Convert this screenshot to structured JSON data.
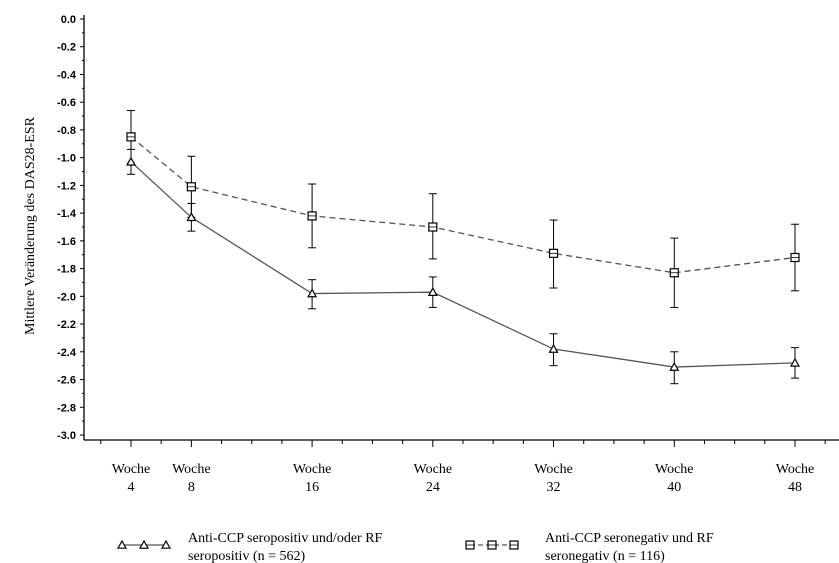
{
  "chart_data": {
    "type": "line",
    "title": "",
    "ylabel": "Mittlere Veränderung des DAS28-ESR",
    "xlabel": "",
    "ylim": [
      -3.0,
      0.0
    ],
    "y_ticks": [
      "0.0",
      "-0.2",
      "-0.4",
      "-0.6",
      "-0.8",
      "-1.0",
      "-1.2",
      "-1.4",
      "-1.6",
      "-1.8",
      "-2.0",
      "-2.2",
      "-2.4",
      "-2.6",
      "-2.8",
      "-3.0"
    ],
    "x": [
      4,
      8,
      16,
      24,
      32,
      40,
      48
    ],
    "x_tick_labels": [
      {
        "line1": "Woche",
        "line2": "4"
      },
      {
        "line1": "Woche",
        "line2": "8"
      },
      {
        "line1": "Woche",
        "line2": "16"
      },
      {
        "line1": "Woche",
        "line2": "24"
      },
      {
        "line1": "Woche",
        "line2": "32"
      },
      {
        "line1": "Woche",
        "line2": "40"
      },
      {
        "line1": "Woche",
        "line2": "48"
      }
    ],
    "grid": false,
    "legend_position": "bottom",
    "series": [
      {
        "name_line1": "Anti-CCP seropositiv und/oder RF",
        "name_line2": "seropositiv (n = 562)",
        "marker": "triangle",
        "line_style": "solid",
        "color": "#555555",
        "values": [
          -1.03,
          -1.43,
          -1.98,
          -1.97,
          -2.38,
          -2.51,
          -2.48
        ],
        "lower": [
          -1.12,
          -1.53,
          -2.09,
          -2.08,
          -2.5,
          -2.63,
          -2.59
        ],
        "upper": [
          -0.94,
          -1.33,
          -1.88,
          -1.86,
          -2.27,
          -2.4,
          -2.37
        ]
      },
      {
        "name_line1": "Anti-CCP seronegativ und RF",
        "name_line2": "seronegativ (n = 116)",
        "marker": "square",
        "line_style": "dashed",
        "color": "#555555",
        "values": [
          -0.85,
          -1.21,
          -1.42,
          -1.5,
          -1.69,
          -1.83,
          -1.72
        ],
        "lower": [
          -1.04,
          -1.43,
          -1.65,
          -1.73,
          -1.94,
          -2.08,
          -1.96
        ],
        "upper": [
          -0.66,
          -0.99,
          -1.19,
          -1.26,
          -1.45,
          -1.58,
          -1.48
        ]
      }
    ]
  }
}
